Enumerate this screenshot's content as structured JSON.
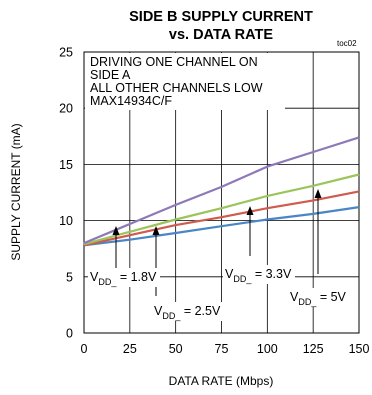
{
  "chart_data": {
    "type": "line",
    "title_line1": "SIDE B SUPPLY CURRENT",
    "title_line2": "vs. DATA RATE",
    "figure_id": "toc02",
    "xlabel": "DATA RATE (Mbps)",
    "ylabel": "SUPPLY CURRENT (mA)",
    "xlim": [
      0,
      150
    ],
    "ylim": [
      0,
      25
    ],
    "x_ticks": [
      0,
      25,
      50,
      75,
      100,
      125,
      150
    ],
    "y_ticks": [
      0,
      5,
      10,
      15,
      20,
      25
    ],
    "grid": true,
    "annotation": [
      "DRIVING ONE CHANNEL ON",
      "SIDE A",
      "ALL OTHER CHANNELS LOW",
      "MAX14934C/F"
    ],
    "x": [
      0,
      25,
      50,
      75,
      100,
      125,
      150
    ],
    "series": [
      {
        "name": "VDD_ = 1.8V",
        "color": "#4a86c5",
        "values": [
          7.8,
          8.3,
          8.9,
          9.5,
          10.1,
          10.6,
          11.2
        ]
      },
      {
        "name": "VDD_ = 2.5V",
        "color": "#d05a4e",
        "values": [
          7.8,
          8.7,
          9.6,
          10.3,
          11.1,
          11.8,
          12.6
        ]
      },
      {
        "name": "VDD_ = 3.3V",
        "color": "#9bc55a",
        "values": [
          7.9,
          9.0,
          10.1,
          11.1,
          12.2,
          13.1,
          14.1
        ]
      },
      {
        "name": "VDD_ = 5V",
        "color": "#8e79b8",
        "values": [
          8.0,
          9.7,
          11.4,
          13.0,
          14.8,
          16.1,
          17.4
        ]
      }
    ],
    "series_labels": [
      {
        "prefix": "V",
        "sub": "DD_",
        "suffix": " = 1.8V"
      },
      {
        "prefix": "V",
        "sub": "DD_",
        "suffix": " = 2.5V"
      },
      {
        "prefix": "V",
        "sub": "DD_",
        "suffix": " = 3.3V"
      },
      {
        "prefix": "V",
        "sub": "DD_",
        "suffix": " = 5V"
      }
    ]
  }
}
